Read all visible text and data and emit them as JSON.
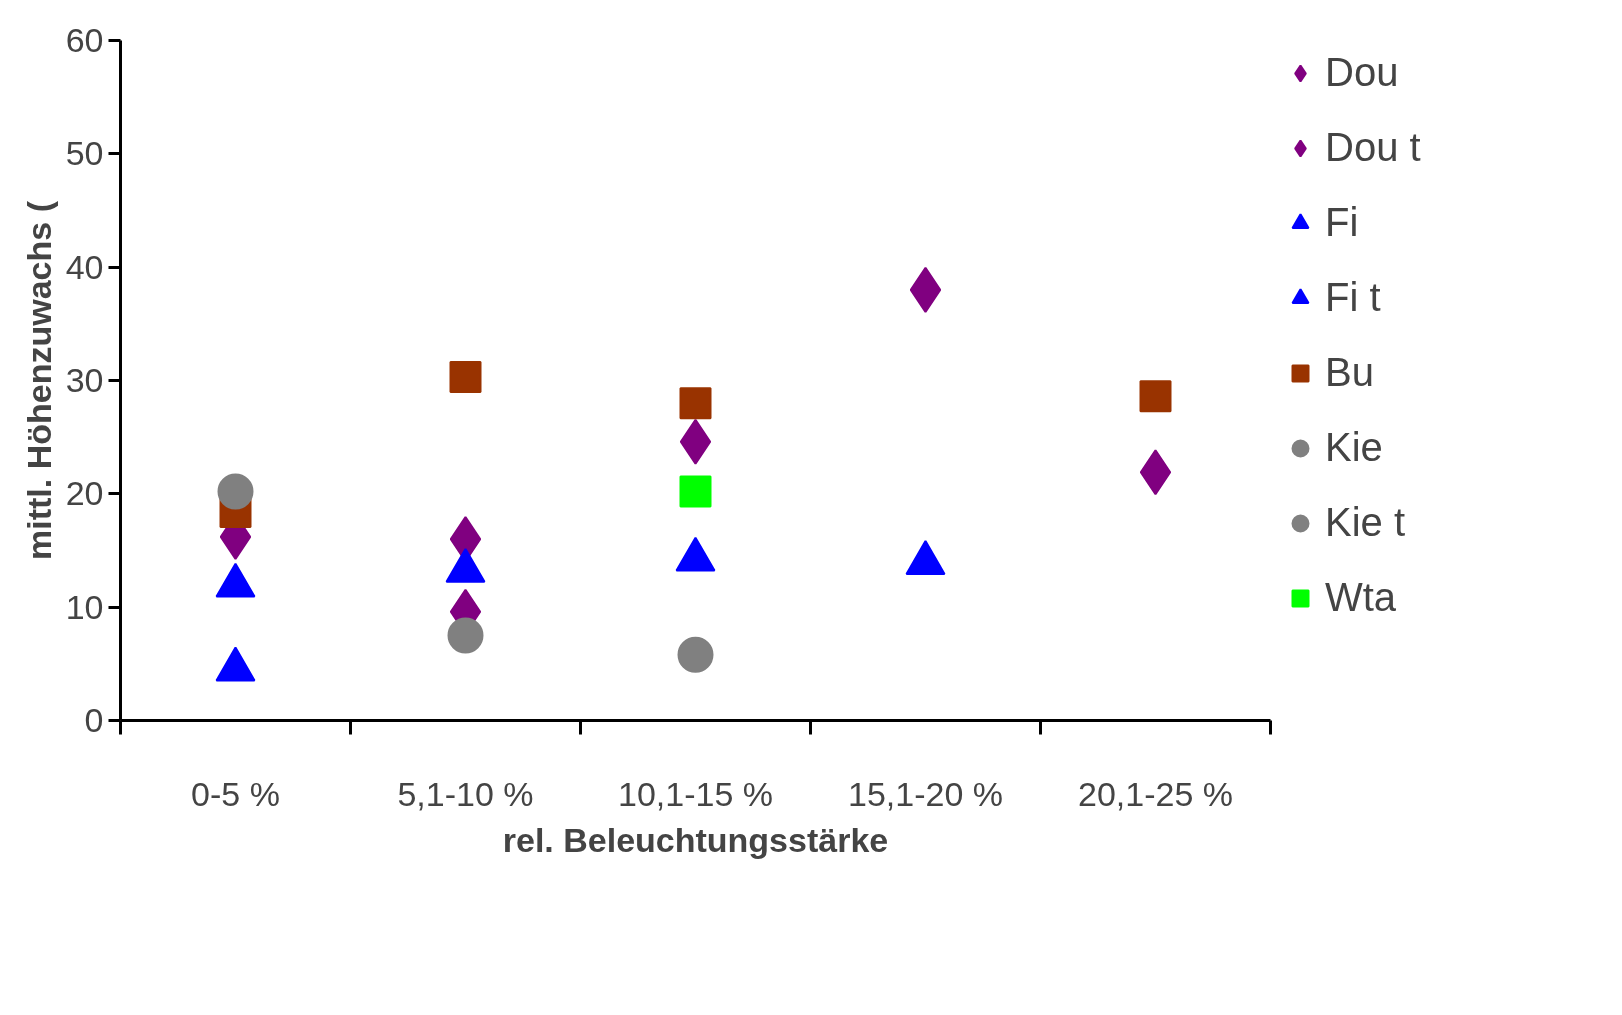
{
  "chart_data": {
    "type": "scatter",
    "xlabel": "rel. Beleuchtungsstärke",
    "ylabel": "mittl. Höhenzuwachs (",
    "categories": [
      "0-5 %",
      "5,1-10 %",
      "10,1-15 %",
      "15,1-20 %",
      "20,1-25 %"
    ],
    "ylim": [
      0,
      60
    ],
    "yticks": [
      0,
      10,
      20,
      30,
      40,
      50,
      60
    ],
    "grid": false,
    "legend": "right",
    "series": [
      {
        "name": "Dou",
        "color": "#800080",
        "marker": "diamond",
        "values": [
          null,
          16.0,
          24.6,
          38.0,
          21.9
        ]
      },
      {
        "name": "Dou t",
        "color": "#800080",
        "marker": "diamond",
        "values": [
          16.2,
          9.6,
          null,
          null,
          null
        ]
      },
      {
        "name": "Fi",
        "color": "#0000ff",
        "marker": "triangle",
        "values": [
          4.5,
          13.2,
          14.2,
          13.9,
          null
        ]
      },
      {
        "name": "Fi t",
        "color": "#0000ff",
        "marker": "triangle",
        "values": [
          11.9,
          null,
          null,
          null,
          null
        ]
      },
      {
        "name": "Bu",
        "color": "#993300",
        "marker": "square",
        "values": [
          18.4,
          30.3,
          28.0,
          null,
          28.6
        ]
      },
      {
        "name": "Kie",
        "color": "#808080",
        "marker": "circle",
        "values": [
          null,
          7.5,
          5.8,
          null,
          null
        ]
      },
      {
        "name": "Kie t",
        "color": "#808080",
        "marker": "circle",
        "values": [
          20.2,
          null,
          null,
          null,
          null
        ]
      },
      {
        "name": "Wta",
        "color": "#00ff00",
        "marker": "square",
        "values": [
          null,
          null,
          20.2,
          null,
          null
        ]
      }
    ]
  }
}
